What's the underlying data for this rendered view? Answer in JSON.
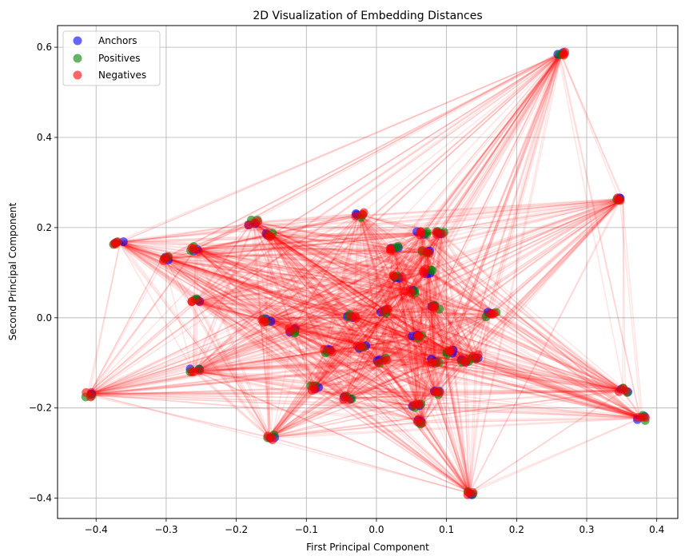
{
  "chart_data": {
    "type": "scatter",
    "title": "2D Visualization of Embedding Distances",
    "xlabel": "First Principal Component",
    "ylabel": "Second Principal Component",
    "xlim": [
      -0.455,
      0.43
    ],
    "ylim": [
      -0.445,
      0.648
    ],
    "xticks": [
      -0.4,
      -0.3,
      -0.2,
      -0.1,
      0.0,
      0.1,
      0.2,
      0.3,
      0.4
    ],
    "xtick_labels": [
      "−0.4",
      "−0.3",
      "−0.2",
      "−0.1",
      "0.0",
      "0.1",
      "0.2",
      "0.3",
      "0.4"
    ],
    "yticks": [
      -0.4,
      -0.2,
      0.0,
      0.2,
      0.4,
      0.6
    ],
    "ytick_labels": [
      "−0.4",
      "−0.2",
      "0.0",
      "0.2",
      "0.4",
      "0.6"
    ],
    "grid": true,
    "legend_position": "top-left",
    "series": [
      {
        "name": "Anchors",
        "color": "#0000ff"
      },
      {
        "name": "Positives",
        "color": "#008000"
      },
      {
        "name": "Negatives",
        "color": "#ff0000"
      }
    ],
    "clusters": [
      {
        "x": -0.411,
        "y": -0.17
      },
      {
        "x": -0.368,
        "y": 0.168
      },
      {
        "x": -0.304,
        "y": 0.132
      },
      {
        "x": -0.257,
        "y": 0.152
      },
      {
        "x": -0.259,
        "y": 0.036
      },
      {
        "x": -0.259,
        "y": -0.118
      },
      {
        "x": -0.176,
        "y": 0.211
      },
      {
        "x": -0.151,
        "y": 0.183
      },
      {
        "x": -0.157,
        "y": -0.005
      },
      {
        "x": -0.152,
        "y": -0.265
      },
      {
        "x": -0.119,
        "y": -0.028
      },
      {
        "x": -0.089,
        "y": -0.155
      },
      {
        "x": -0.068,
        "y": -0.073
      },
      {
        "x": -0.035,
        "y": 0.004
      },
      {
        "x": -0.043,
        "y": -0.177
      },
      {
        "x": -0.024,
        "y": 0.228
      },
      {
        "x": -0.021,
        "y": -0.063
      },
      {
        "x": 0.01,
        "y": 0.015
      },
      {
        "x": 0.008,
        "y": -0.095
      },
      {
        "x": 0.025,
        "y": 0.152
      },
      {
        "x": 0.03,
        "y": 0.09
      },
      {
        "x": 0.048,
        "y": 0.06
      },
      {
        "x": 0.058,
        "y": -0.044
      },
      {
        "x": 0.058,
        "y": -0.195
      },
      {
        "x": 0.064,
        "y": 0.187
      },
      {
        "x": 0.065,
        "y": -0.23
      },
      {
        "x": 0.072,
        "y": 0.145
      },
      {
        "x": 0.073,
        "y": 0.103
      },
      {
        "x": 0.083,
        "y": 0.023
      },
      {
        "x": 0.083,
        "y": -0.097
      },
      {
        "x": 0.085,
        "y": -0.168
      },
      {
        "x": 0.092,
        "y": 0.187
      },
      {
        "x": 0.105,
        "y": -0.077
      },
      {
        "x": 0.125,
        "y": -0.098
      },
      {
        "x": 0.142,
        "y": -0.087
      },
      {
        "x": 0.163,
        "y": 0.008
      },
      {
        "x": 0.133,
        "y": -0.388
      },
      {
        "x": 0.262,
        "y": 0.585
      },
      {
        "x": 0.35,
        "y": 0.262
      },
      {
        "x": 0.352,
        "y": -0.162
      },
      {
        "x": 0.377,
        "y": -0.222
      }
    ]
  }
}
